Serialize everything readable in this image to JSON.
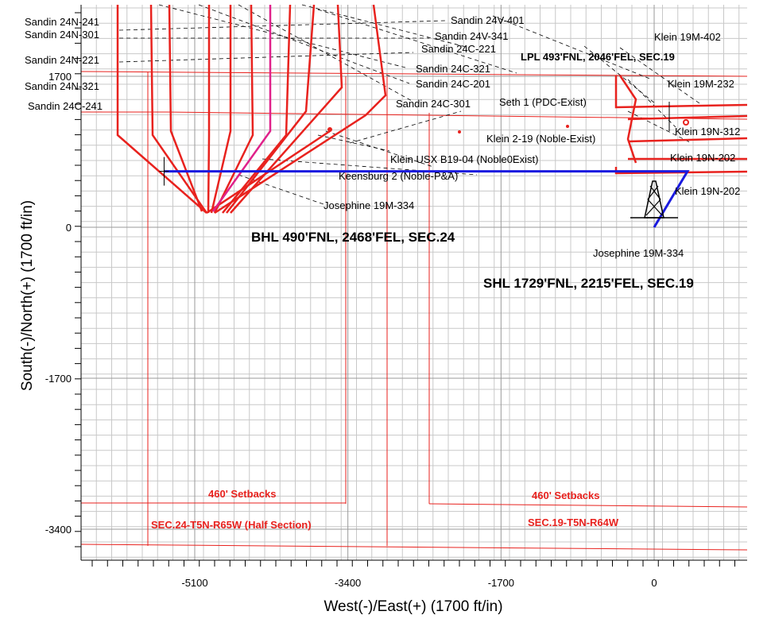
{
  "chart_data": {
    "type": "line",
    "title": "",
    "xlabel": "West(-)/East(+) (1700 ft/in)",
    "ylabel": "South(-)/North(+) (1700 ft/in)",
    "x_ticks": [
      -5100,
      -3400,
      -1700,
      0
    ],
    "y_ticks": [
      1700,
      0,
      -1700,
      -3400
    ],
    "xlim": [
      -6500,
      500
    ],
    "ylim": [
      -4100,
      1900
    ],
    "grid": true,
    "colors": {
      "grid": "#c8c8c8",
      "plan": "#1a1adf",
      "offset_wells": "#e8221e",
      "highlight_well": "#e0218a",
      "lease_lines": "#e8221e",
      "anticollision": "#000000"
    },
    "series": [
      {
        "name": "",
        "color": "#1a1adf",
        "points": [
          [
            -5440,
            630
          ],
          [
            370,
            630
          ],
          [
            0,
            0
          ]
        ]
      }
    ],
    "offset_wells": [
      "Sandin 24N-241",
      "Sandin 24N-301",
      "Sandin 24N-221",
      "Sandin 24N-321",
      "Sandin 24C-241",
      "Sandin 24V-401",
      "Sandin 24V-341",
      "Sandin 24C-221",
      "Sandin 24C-321",
      "Sandin 24C-201",
      "Sandin 24C-301",
      "Seth 1 (PDC-Exist)",
      "Klein 19M-402",
      "Klein 19M-232",
      "Klein 19N-312",
      "Klein 19N-202",
      "Klein 19N-202",
      "Klein 2-19 (Noble-Exist)",
      "Klein USX B19-04 (Noble0Exist)",
      "Keensburg 2 (Noble-P&A)",
      "Josephine 19M-334"
    ],
    "annotations": {
      "lpl": "LPL 493'FNL, 2046'FEL, SEC.19",
      "bhl": "BHL 490'FNL, 2468'FEL, SEC.24",
      "shl": "SHL 1729'FNL, 2215'FEL, SEC.19",
      "rig_label": "Josephine 19M-334",
      "setbacks_left": "460' Setbacks",
      "setbacks_right": "460' Setbacks",
      "section_left": "SEC.24-T5N-R65W (Half Section)",
      "section_right": "SEC.19-T5N-R64W"
    }
  }
}
